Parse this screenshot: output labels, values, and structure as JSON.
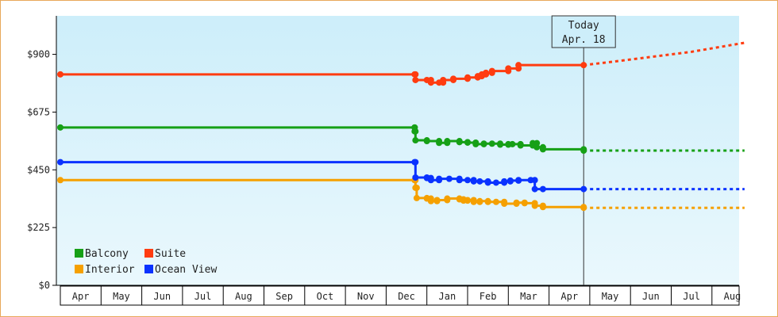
{
  "chart_data": {
    "type": "line",
    "title": "",
    "xlabel": "",
    "ylabel": "",
    "ylim": [
      0,
      1050
    ],
    "yticks": [
      0,
      225,
      450,
      675,
      900
    ],
    "ytick_labels": [
      "$0",
      "$225",
      "$450",
      "$675",
      "$900"
    ],
    "x_month_labels": [
      "Apr",
      "May",
      "Jun",
      "Jul",
      "Aug",
      "Sep",
      "Oct",
      "Nov",
      "Dec",
      "Jan",
      "Feb",
      "Mar",
      "Apr",
      "May",
      "Jun",
      "Jul",
      "Aug"
    ],
    "today_marker": {
      "line1": "Today",
      "line2": "Apr. 18",
      "month_index": 12.35
    },
    "legend_placement": "bottom-left",
    "grid": false,
    "series": [
      {
        "name": "Balcony",
        "color": "#16a016",
        "points": [
          [
            -0.5,
            615
          ],
          [
            8.2,
            615
          ],
          [
            8.2,
            600
          ],
          [
            8.22,
            565
          ],
          [
            8.5,
            562
          ],
          [
            8.8,
            555
          ],
          [
            9.0,
            562
          ],
          [
            9.3,
            558
          ],
          [
            9.5,
            556
          ],
          [
            9.7,
            550
          ],
          [
            9.9,
            552
          ],
          [
            10.1,
            552
          ],
          [
            10.3,
            548
          ],
          [
            10.5,
            550
          ],
          [
            10.6,
            550
          ],
          [
            10.8,
            545
          ],
          [
            11.1,
            554
          ],
          [
            11.2,
            538
          ],
          [
            11.35,
            530
          ],
          [
            12.35,
            525
          ]
        ],
        "forecast": [
          [
            12.35,
            525
          ],
          [
            16.3,
            525
          ]
        ]
      },
      {
        "name": "Suite",
        "color": "#ff3c10",
        "points": [
          [
            -0.5,
            822
          ],
          [
            8.2,
            822
          ],
          [
            8.22,
            800
          ],
          [
            8.5,
            800
          ],
          [
            8.6,
            790
          ],
          [
            8.8,
            790
          ],
          [
            8.9,
            800
          ],
          [
            9.15,
            805
          ],
          [
            9.5,
            810
          ],
          [
            9.75,
            815
          ],
          [
            9.85,
            822
          ],
          [
            9.95,
            828
          ],
          [
            10.1,
            835
          ],
          [
            10.5,
            845
          ],
          [
            10.75,
            858
          ],
          [
            12.35,
            858
          ]
        ],
        "forecast": [
          [
            12.35,
            858
          ],
          [
            13.0,
            870
          ],
          [
            14.0,
            890
          ],
          [
            15.0,
            910
          ],
          [
            16.3,
            945
          ]
        ]
      },
      {
        "name": "Interior",
        "color": "#f5a000",
        "points": [
          [
            -0.5,
            410
          ],
          [
            8.2,
            410
          ],
          [
            8.22,
            380
          ],
          [
            8.25,
            340
          ],
          [
            8.5,
            338
          ],
          [
            8.6,
            328
          ],
          [
            8.75,
            332
          ],
          [
            9.0,
            338
          ],
          [
            9.3,
            335
          ],
          [
            9.4,
            330
          ],
          [
            9.5,
            332
          ],
          [
            9.65,
            325
          ],
          [
            9.8,
            328
          ],
          [
            10.0,
            325
          ],
          [
            10.2,
            325
          ],
          [
            10.4,
            318
          ],
          [
            10.7,
            322
          ],
          [
            10.9,
            320
          ],
          [
            11.15,
            310
          ],
          [
            11.35,
            305
          ],
          [
            12.35,
            302
          ]
        ],
        "forecast": [
          [
            12.35,
            302
          ],
          [
            16.3,
            302
          ]
        ]
      },
      {
        "name": "Ocean View",
        "color": "#0a32ff",
        "points": [
          [
            -0.5,
            480
          ],
          [
            8.2,
            480
          ],
          [
            8.22,
            420
          ],
          [
            8.5,
            418
          ],
          [
            8.6,
            410
          ],
          [
            8.8,
            415
          ],
          [
            9.05,
            415
          ],
          [
            9.3,
            410
          ],
          [
            9.5,
            410
          ],
          [
            9.65,
            405
          ],
          [
            9.8,
            405
          ],
          [
            10.0,
            400
          ],
          [
            10.2,
            400
          ],
          [
            10.4,
            405
          ],
          [
            10.55,
            408
          ],
          [
            10.75,
            410
          ],
          [
            11.05,
            410
          ],
          [
            11.15,
            375
          ],
          [
            11.35,
            375
          ],
          [
            12.35,
            375
          ]
        ],
        "forecast": [
          [
            12.35,
            375
          ],
          [
            16.3,
            375
          ]
        ]
      }
    ]
  }
}
